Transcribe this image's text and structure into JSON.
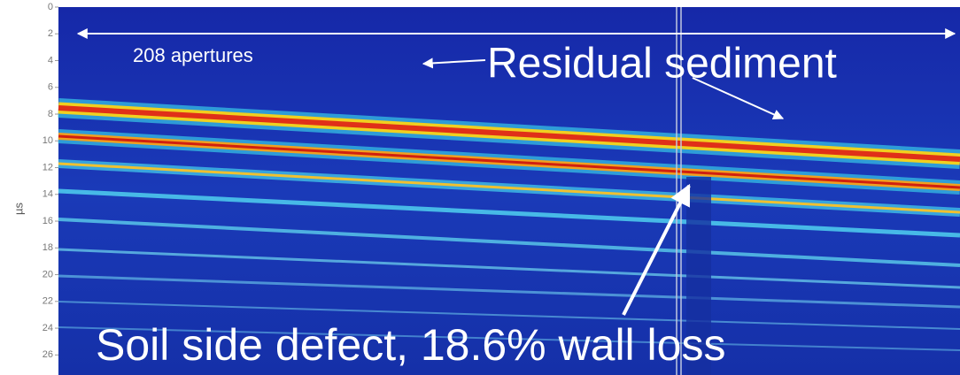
{
  "chart_data": {
    "type": "bscan",
    "ylabel": "µs",
    "ylim": [
      0,
      27.5
    ],
    "yticks": [
      0,
      2,
      4,
      6,
      8,
      10,
      12,
      14,
      16,
      18,
      20,
      22,
      24,
      26
    ],
    "annotations": [
      "208 apertures",
      "Residual sediment",
      "Soil side defect, 18.6% wall loss"
    ]
  }
}
